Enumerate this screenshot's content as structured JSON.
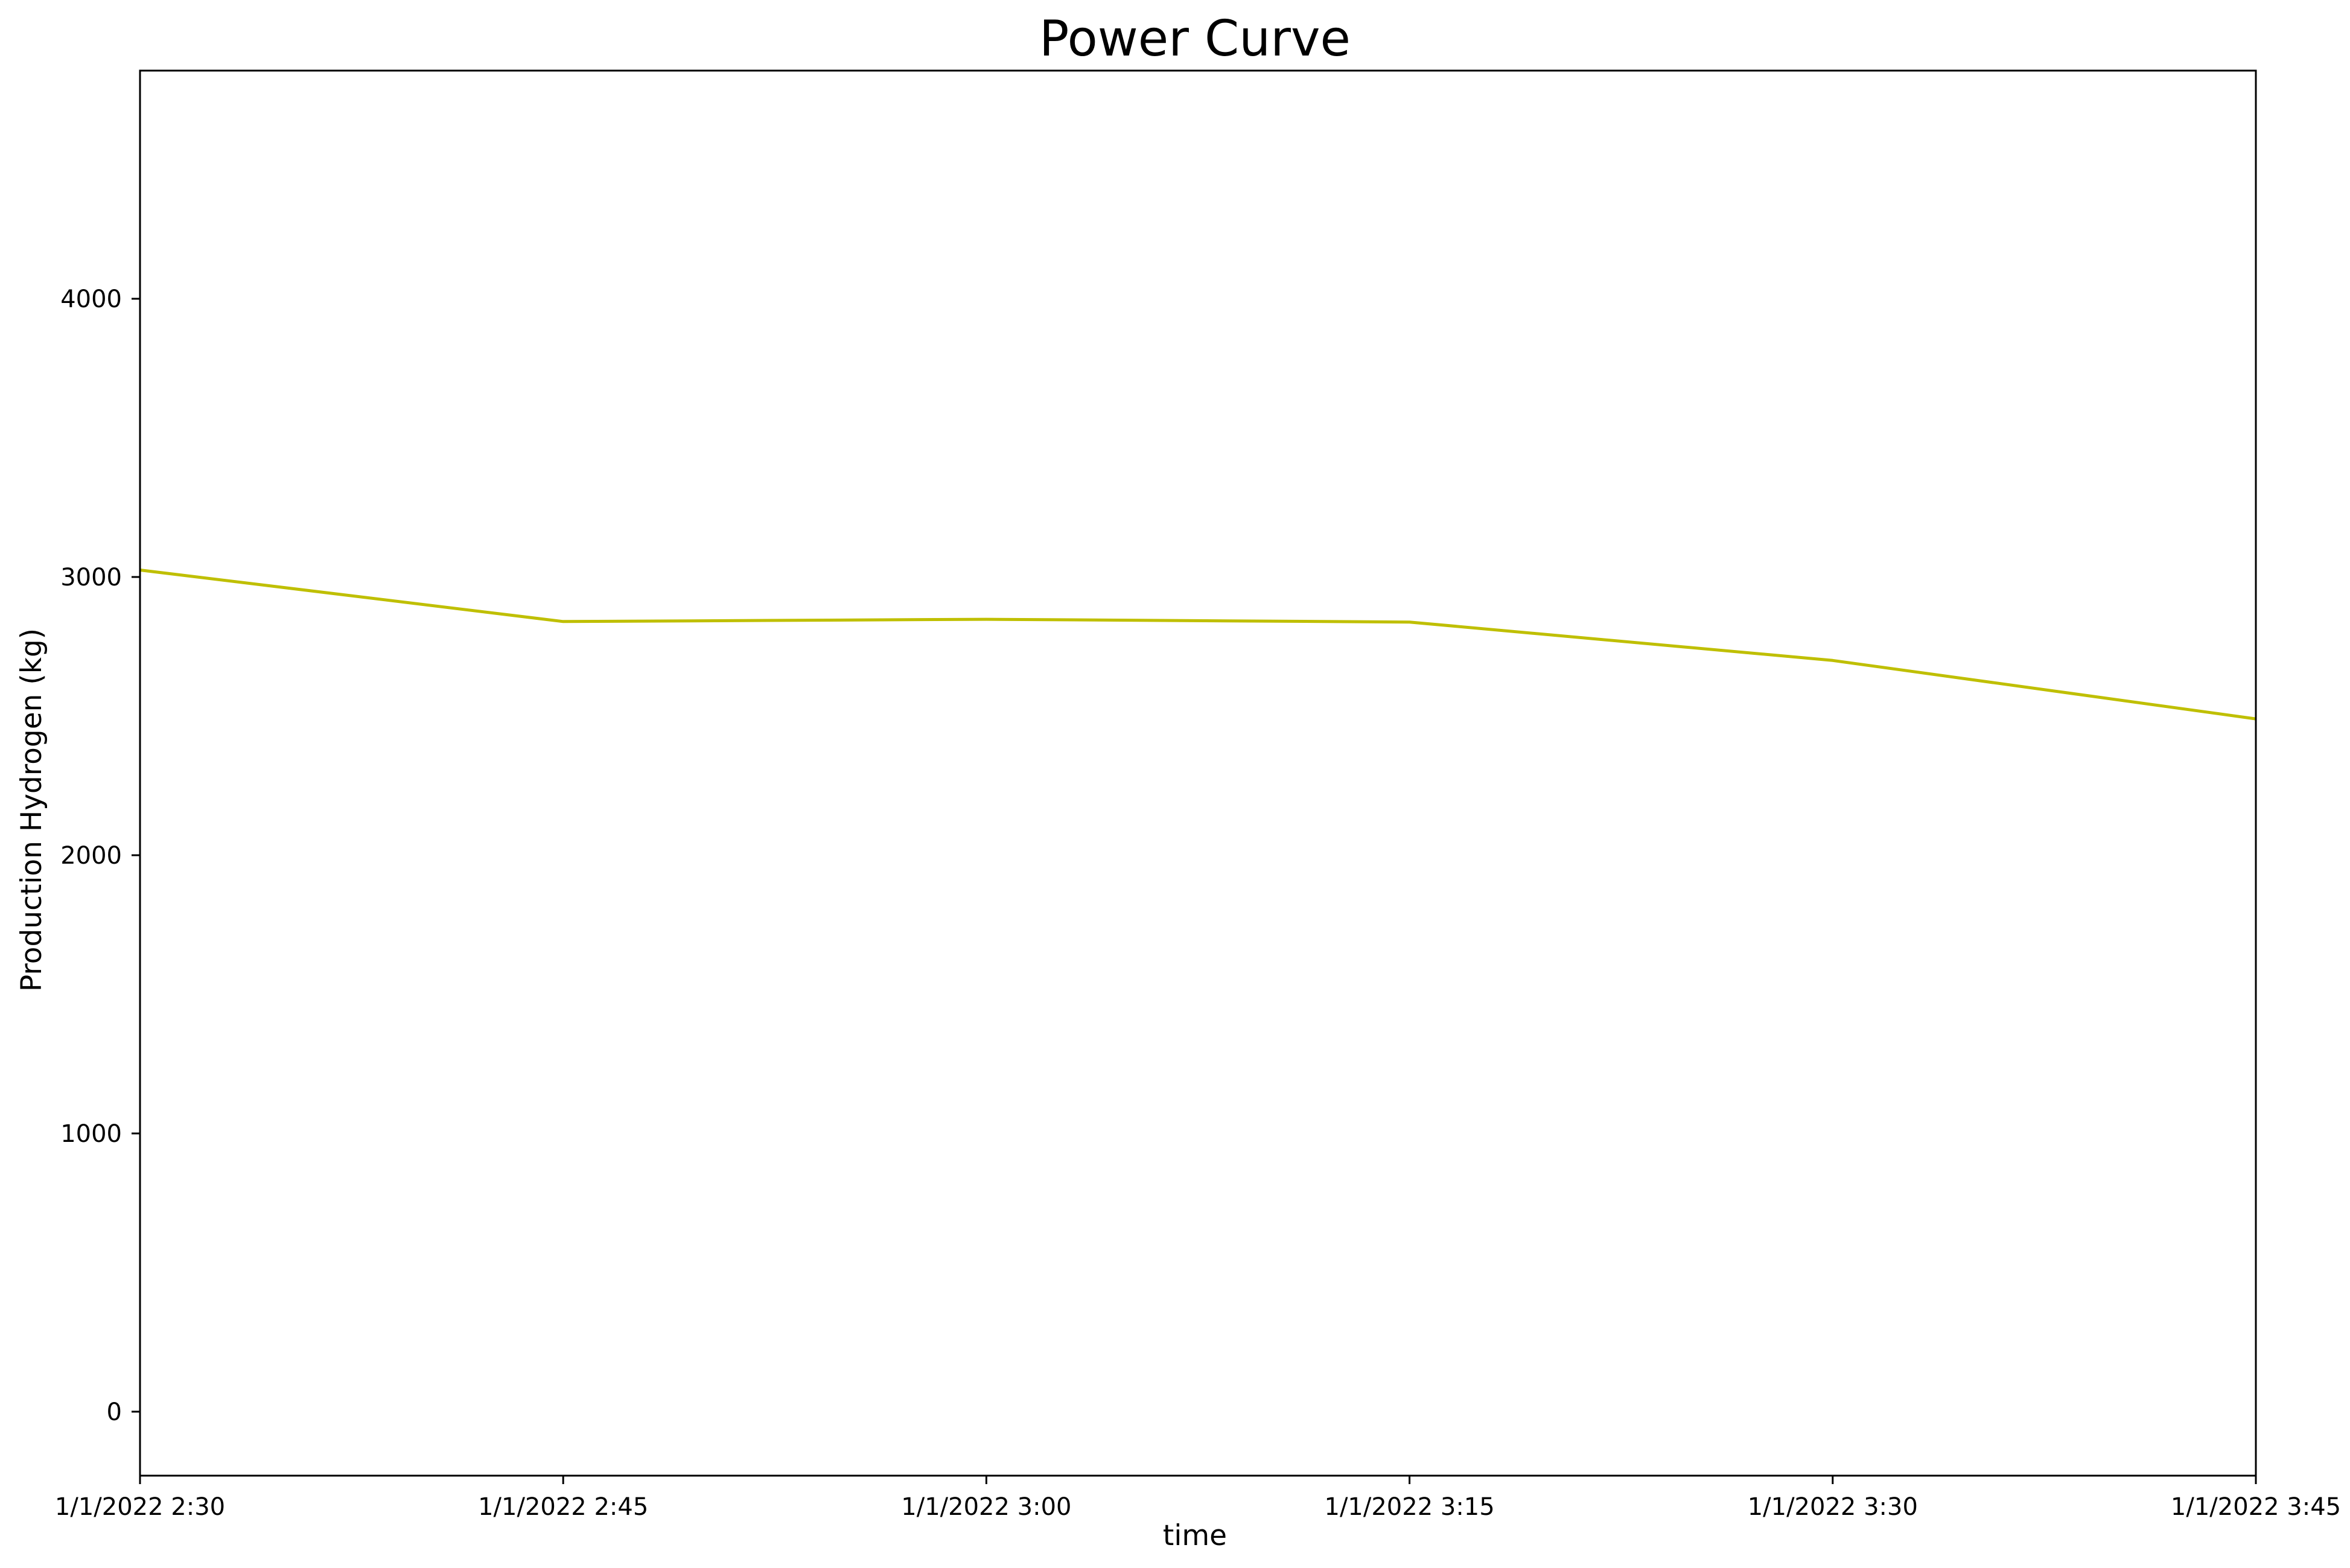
{
  "chart_data": {
    "type": "line",
    "title": "Power Curve",
    "xlabel": "time",
    "ylabel": "Production Hydrogen (kg)",
    "categories": [
      "1/1/2022 2:30",
      "1/1/2022 2:45",
      "1/1/2022 3:00",
      "1/1/2022 3:15",
      "1/1/2022 3:30",
      "1/1/2022 3:45"
    ],
    "series": [
      {
        "color": "#bfbf00",
        "values": [
          3025,
          2840,
          2848,
          2838,
          2700,
          2490
        ]
      }
    ],
    "ylim": [
      -230,
      4820
    ],
    "yticks": [
      0,
      1000,
      2000,
      3000,
      4000
    ],
    "ytick_labels": [
      "0",
      "1000",
      "2000",
      "3000",
      "4000"
    ],
    "grid": false,
    "legend": "none"
  }
}
